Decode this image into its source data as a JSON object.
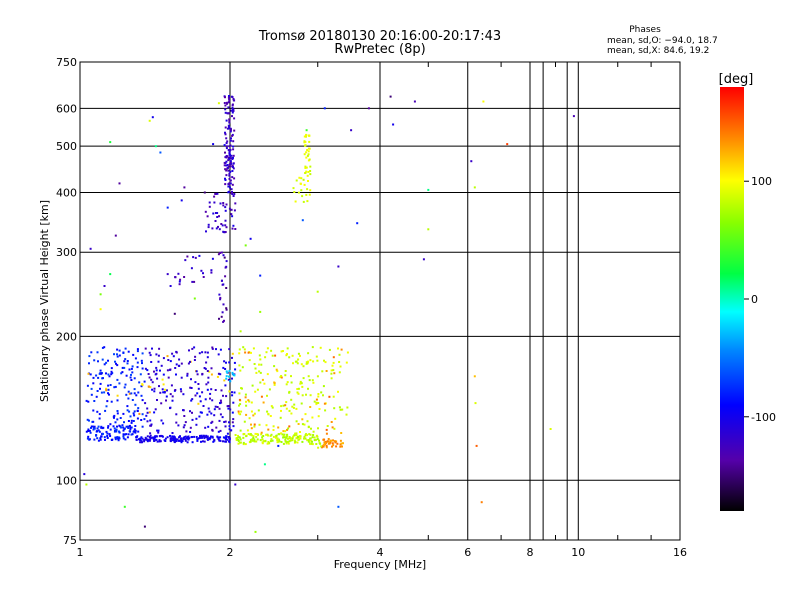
{
  "chart_data": {
    "type": "scatter",
    "title": "Tromsø 20180130 20:16:00-20:17:43",
    "subtitle": "RwPretec (8p)",
    "xlabel": "Frequency [MHz]",
    "ylabel": "Stationary phase Virtual Height [km]",
    "x_scale": "log",
    "y_scale": "log",
    "xlim": [
      1,
      16
    ],
    "ylim": [
      75,
      750
    ],
    "x_ticks": [
      1,
      2,
      4,
      6,
      8,
      10,
      16
    ],
    "x_tick_labels": [
      "1",
      "2",
      "4",
      "6",
      "8",
      "10",
      "16"
    ],
    "y_ticks": [
      75,
      100,
      200,
      300,
      400,
      500,
      600,
      750
    ],
    "y_tick_labels": [
      "75",
      "100",
      "200",
      "300",
      "400",
      "500",
      "600",
      "750"
    ],
    "grid": true,
    "colorbar": {
      "label": "[deg]",
      "range": [
        -180,
        180
      ],
      "ticks": [
        100,
        0,
        -100
      ],
      "tick_labels": [
        "100",
        "0",
        "-100"
      ]
    },
    "stats": {
      "header": "Phases",
      "line_o": "mean, sd,O: −94.0, 18.7",
      "line_x": "mean, sd,X:  84.6, 19.2"
    },
    "series": [
      {
        "description_ref": "isolated-echoes",
        "points": [
          [
            1.02,
            103,
            -110
          ],
          [
            1.03,
            98,
            80
          ],
          [
            1.05,
            305,
            -120
          ],
          [
            1.1,
            245,
            60
          ],
          [
            1.1,
            228,
            100
          ],
          [
            1.12,
            255,
            -120
          ],
          [
            1.15,
            270,
            20
          ],
          [
            1.15,
            510,
            30
          ],
          [
            1.18,
            325,
            -140
          ],
          [
            1.2,
            418,
            -140
          ],
          [
            1.23,
            88,
            40
          ],
          [
            1.35,
            80,
            -150
          ],
          [
            1.38,
            565,
            90
          ],
          [
            1.4,
            575,
            -100
          ],
          [
            1.42,
            500,
            10
          ],
          [
            1.45,
            485,
            -60
          ],
          [
            1.5,
            372,
            -80
          ],
          [
            1.5,
            270,
            -120
          ],
          [
            1.52,
            255,
            -110
          ],
          [
            1.55,
            223,
            -150
          ],
          [
            1.6,
            385,
            -100
          ],
          [
            1.62,
            410,
            -140
          ],
          [
            1.68,
            260,
            -120
          ],
          [
            1.7,
            240,
            60
          ],
          [
            1.78,
            400,
            -150
          ],
          [
            1.85,
            505,
            -100
          ],
          [
            1.9,
            615,
            90
          ],
          [
            2.05,
            98,
            -120
          ],
          [
            2.1,
            205,
            80
          ],
          [
            2.15,
            310,
            60
          ],
          [
            2.2,
            320,
            -100
          ],
          [
            2.25,
            78,
            70
          ],
          [
            2.3,
            268,
            -80
          ],
          [
            2.35,
            108,
            10
          ],
          [
            2.3,
            225,
            70
          ],
          [
            2.5,
            118,
            -80
          ],
          [
            2.8,
            350,
            -60
          ],
          [
            2.85,
            540,
            40
          ],
          [
            3.0,
            248,
            80
          ],
          [
            3.1,
            600,
            -80
          ],
          [
            3.3,
            88,
            -60
          ],
          [
            3.3,
            280,
            -120
          ],
          [
            3.5,
            540,
            -120
          ],
          [
            3.6,
            345,
            -80
          ],
          [
            3.8,
            600,
            -140
          ],
          [
            4.2,
            635,
            -150
          ],
          [
            4.25,
            555,
            -100
          ],
          [
            4.7,
            620,
            -130
          ],
          [
            4.9,
            290,
            -120
          ],
          [
            5.0,
            335,
            80
          ],
          [
            5.0,
            405,
            10
          ],
          [
            6.1,
            465,
            -120
          ],
          [
            6.2,
            410,
            80
          ],
          [
            6.2,
            165,
            120
          ],
          [
            6.22,
            145,
            90
          ],
          [
            6.25,
            118,
            150
          ],
          [
            6.4,
            90,
            140
          ],
          [
            6.45,
            620,
            100
          ],
          [
            7.2,
            505,
            160
          ],
          [
            8.8,
            128,
            90
          ],
          [
            9.8,
            578,
            -130
          ]
        ]
      }
    ]
  }
}
